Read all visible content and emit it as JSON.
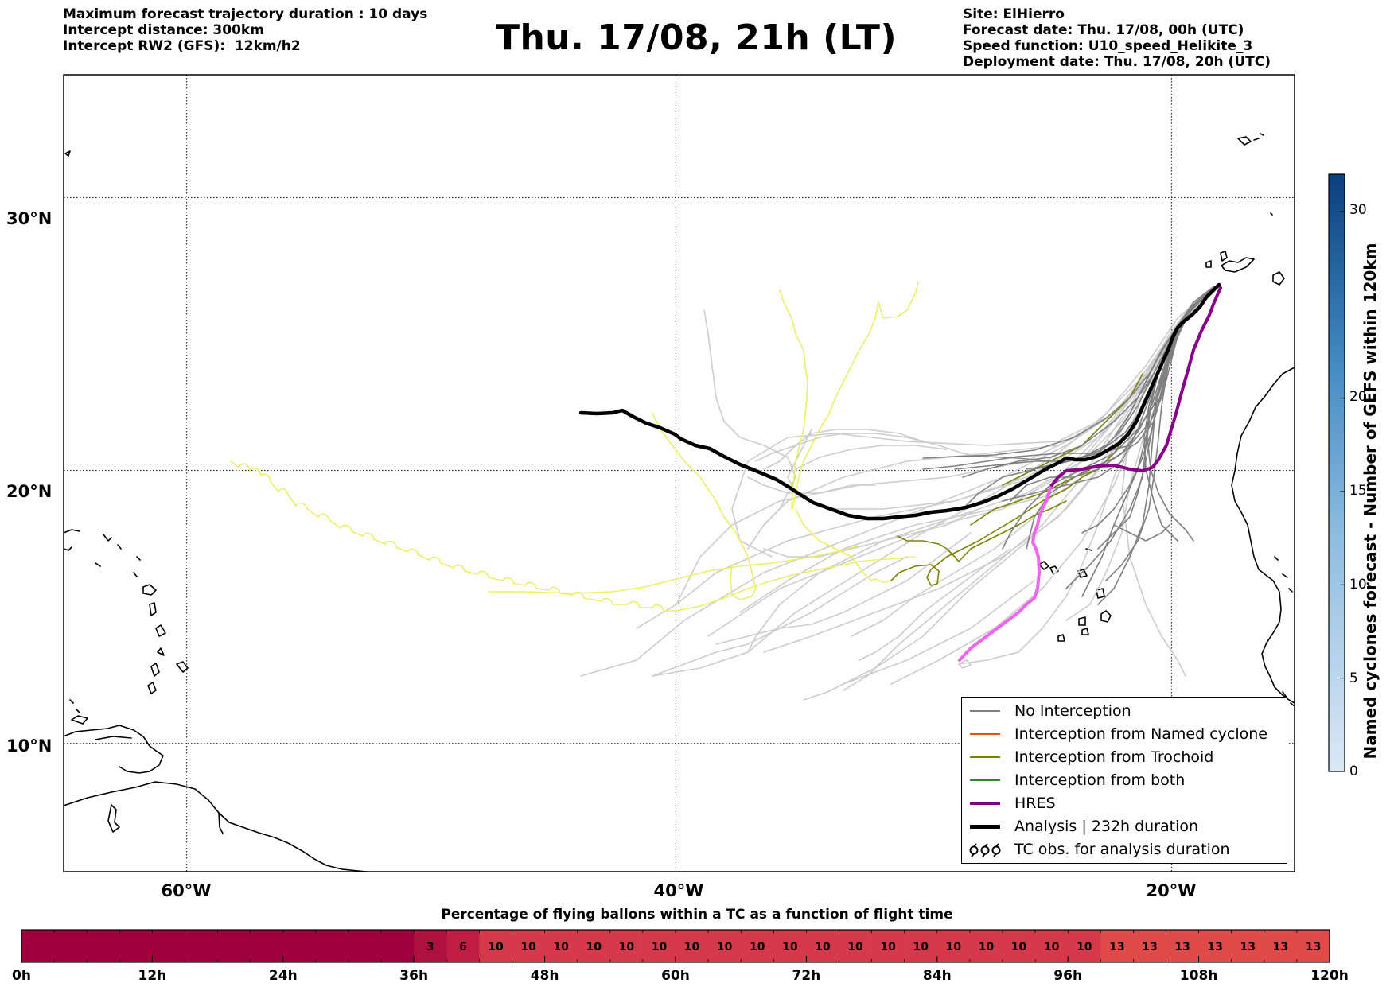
{
  "header": {
    "left": [
      "Maximum forecast trajectory duration : 10 days",
      "Intercept distance: 300km",
      "Intercept RW2 (GFS):  12km/h2"
    ],
    "title": "Thu. 17/08, 21h (LT)",
    "right": [
      "Site: ElHierro",
      "Forecast date: Thu. 17/08, 00h (UTC)",
      "Speed function: U10_speed_Helikite_3",
      "Deployment date: Thu. 17/08, 20h (UTC)"
    ]
  },
  "map": {
    "lat_labels": [
      "30°N",
      "20°N",
      "10°N"
    ],
    "lon_labels": [
      "60°W",
      "40°W",
      "20°W"
    ],
    "lat_lines": [
      30,
      20,
      10
    ],
    "lon_lines": [
      -60,
      -40,
      -20
    ],
    "lat_range": [
      5.3,
      34.5
    ],
    "lon_range": [
      -65,
      -15
    ]
  },
  "colorbar": {
    "title": "Named cyclones forecast - Number of GEFS within 120km",
    "ticks": [
      "30",
      "20",
      "15",
      "10",
      "5",
      "0"
    ],
    "tick_values": [
      30,
      20,
      15,
      10,
      5,
      0
    ],
    "max": 32,
    "color_low": "#dbe8f6",
    "color_high": "#0a3f7d"
  },
  "legend": {
    "items": [
      {
        "label": "No Interception",
        "color": "#808080"
      },
      {
        "label": "Interception from Named cyclone",
        "color": "#e8501a"
      },
      {
        "label": "Interception from Trochoid",
        "color": "#808000"
      },
      {
        "label": "Interception from both",
        "color": "#2a8a2a"
      },
      {
        "label": "HRES",
        "color": "#800080"
      },
      {
        "label": "Analysis | 232h duration",
        "color": "#000000"
      },
      {
        "label": "TC obs. for analysis duration",
        "symbol": "ἐἐἐ"
      }
    ],
    "tc_symbol": "ර ර ර"
  },
  "timeline": {
    "title": "Percentage of flying ballons within a TC as a function of flight time",
    "hour_labels": [
      "0h",
      "12h",
      "24h",
      "36h",
      "48h",
      "60h",
      "72h",
      "84h",
      "96h",
      "108h",
      "120h"
    ],
    "cells": [
      "",
      "",
      "",
      "",
      "",
      "",
      "",
      "",
      "",
      "",
      "",
      "",
      "3",
      "6",
      "10",
      "10",
      "10",
      "10",
      "10",
      "10",
      "10",
      "10",
      "10",
      "10",
      "10",
      "10",
      "10",
      "10",
      "10",
      "10",
      "10",
      "10",
      "10",
      "13",
      "13",
      "13",
      "13",
      "13",
      "13",
      "13"
    ],
    "cell_values": [
      0,
      0,
      0,
      0,
      0,
      0,
      0,
      0,
      0,
      0,
      0,
      0,
      3,
      6,
      10,
      10,
      10,
      10,
      10,
      10,
      10,
      10,
      10,
      10,
      10,
      10,
      10,
      10,
      10,
      10,
      10,
      10,
      10,
      13,
      13,
      13,
      13,
      13,
      13,
      13
    ]
  }
}
